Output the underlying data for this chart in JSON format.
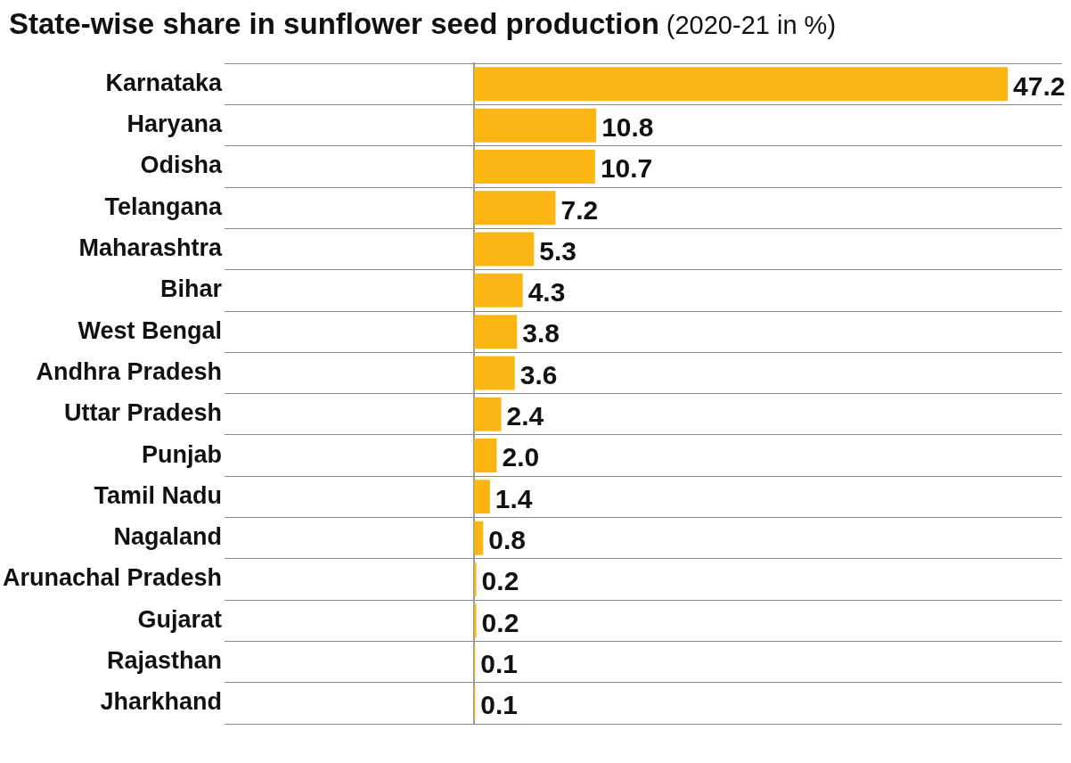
{
  "chart_data": {
    "type": "bar",
    "orientation": "horizontal",
    "title": "State-wise share in sunflower seed production",
    "subtitle": "(2020-21 in %)",
    "categories": [
      "Karnataka",
      "Haryana",
      "Odisha",
      "Telangana",
      "Maharashtra",
      "Bihar",
      "West Bengal",
      "Andhra Pradesh",
      "Uttar Pradesh",
      "Punjab",
      "Tamil Nadu",
      "Nagaland",
      "Arunachal Pradesh",
      "Gujarat",
      "Rajasthan",
      "Jharkhand"
    ],
    "values": [
      47.2,
      10.8,
      10.7,
      7.2,
      5.3,
      4.3,
      3.8,
      3.6,
      2.4,
      2.0,
      1.4,
      0.8,
      0.2,
      0.2,
      0.1,
      0.1
    ],
    "value_labels": [
      "47.2",
      "10.8",
      "10.7",
      "7.2",
      "5.3",
      "4.3",
      "3.8",
      "3.6",
      "2.4",
      "2.0",
      "1.4",
      "0.8",
      "0.2",
      "0.2",
      "0.1",
      "0.1"
    ],
    "color": "#fbb614",
    "xlim": [
      0,
      52
    ],
    "tick_labels": "y",
    "grid": "y",
    "legend": false
  }
}
